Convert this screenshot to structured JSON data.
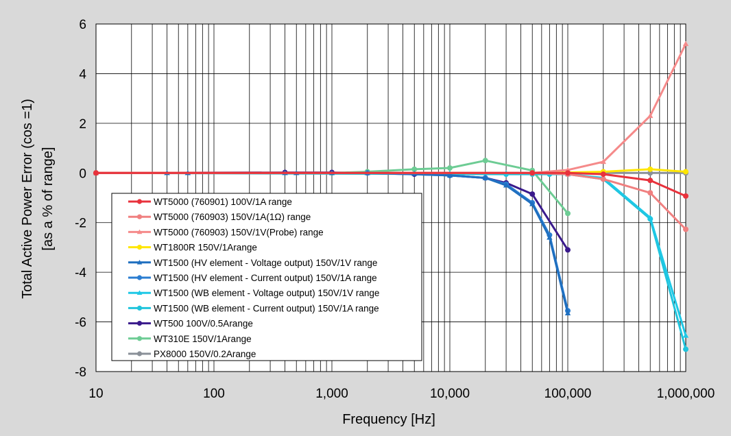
{
  "chart_data": {
    "type": "line",
    "title": "",
    "xlabel": "Frequency [Hz]",
    "ylabel_lines": [
      "Total Active Power Error (cos =1)",
      "[as a % of range]"
    ],
    "x_scale": "log",
    "xlim": [
      10,
      1000000
    ],
    "ylim": [
      -8,
      6
    ],
    "x_ticks": [
      10,
      100,
      1000,
      10000,
      100000,
      1000000
    ],
    "x_tick_labels": [
      "10",
      "100",
      "1,000",
      "10,000",
      "100,000",
      "1,000,000"
    ],
    "y_ticks": [
      -8,
      -6,
      -4,
      -2,
      0,
      2,
      4,
      6
    ],
    "y_tick_labels": [
      "-8",
      "-6",
      "-4",
      "-2",
      "0",
      "2",
      "4",
      "6"
    ],
    "grid": true,
    "legend_position": "bottom-left",
    "series": [
      {
        "name": "WT5000 (760901) 100V/1A range",
        "color": "#e8323c",
        "marker": "circle",
        "x": [
          10,
          50000,
          100000,
          200000,
          500000,
          1000000
        ],
        "y": [
          0,
          0,
          0,
          -0.05,
          -0.3,
          -0.93
        ]
      },
      {
        "name": "WT5000 (760903) 150V/1A(1Ω) range",
        "color": "#f08080",
        "marker": "circle",
        "x": [
          10,
          50000,
          100000,
          200000,
          500000,
          1000000
        ],
        "y": [
          0,
          0,
          -0.05,
          -0.25,
          -0.8,
          -2.27
        ]
      },
      {
        "name": "WT5000 (760903) 150V/1V(Probe) range",
        "color": "#f58a8a",
        "marker": "triangle",
        "x": [
          10,
          50000,
          100000,
          200000,
          500000,
          1000000
        ],
        "y": [
          0,
          0,
          0.12,
          0.45,
          2.3,
          5.2
        ]
      },
      {
        "name": "WT1800R 150V/1Arange",
        "color": "#ffe600",
        "marker": "circle",
        "x": [
          10,
          50000,
          100000,
          200000,
          500000,
          1000000
        ],
        "y": [
          0,
          0,
          0.02,
          0.05,
          0.15,
          0.05
        ]
      },
      {
        "name": "WT1500 (HV element - Voltage output) 150V/1V range",
        "color": "#1f6fbf",
        "marker": "triangle",
        "x": [
          10,
          40,
          60,
          400,
          500,
          1000,
          2000,
          5000,
          10000,
          20000,
          30000,
          50000,
          70000,
          100000
        ],
        "y": [
          0,
          0,
          0,
          0,
          0,
          0,
          0,
          -0.03,
          -0.1,
          -0.2,
          -0.5,
          -1.25,
          -2.6,
          -5.65
        ]
      },
      {
        "name": "WT1500 (HV element - Current output) 150V/1A range",
        "color": "#2a7dd1",
        "marker": "circle",
        "x": [
          10,
          2000,
          10000,
          20000,
          30000,
          50000,
          70000,
          100000
        ],
        "y": [
          0,
          0,
          -0.1,
          -0.2,
          -0.45,
          -1.2,
          -2.5,
          -5.55
        ]
      },
      {
        "name": "WT1500 (WB element - Voltage output) 150V/1V range",
        "color": "#1ec8e6",
        "marker": "triangle",
        "x": [
          10,
          40,
          60,
          400,
          500,
          1000,
          2000,
          5000,
          10000,
          30000,
          50000,
          100000,
          200000,
          500000,
          1000000
        ],
        "y": [
          0,
          0,
          0,
          0,
          0,
          0,
          0,
          0,
          0,
          0,
          0,
          -0.05,
          -0.2,
          -1.8,
          -6.55
        ]
      },
      {
        "name": "WT1500 (WB element - Current output) 150V/1A range",
        "color": "#20c4dc",
        "marker": "circle",
        "x": [
          10,
          30000,
          50000,
          70000,
          100000,
          200000,
          500000,
          1000000
        ],
        "y": [
          0,
          -0.05,
          -0.05,
          -0.05,
          -0.05,
          -0.25,
          -1.85,
          -7.1
        ]
      },
      {
        "name": "WT500 100V/0.5Arange",
        "color": "#3a1a8c",
        "marker": "circle",
        "x": [
          10,
          400,
          1000,
          5000,
          10000,
          20000,
          30000,
          50000,
          100000
        ],
        "y": [
          0,
          0.02,
          0.02,
          -0.05,
          -0.1,
          -0.2,
          -0.4,
          -0.85,
          -3.1
        ]
      },
      {
        "name": "WT310E 150V/1Arange",
        "color": "#6dcc94",
        "marker": "circle",
        "x": [
          10,
          1000,
          2000,
          5000,
          10000,
          20000,
          50000,
          100000
        ],
        "y": [
          0,
          0,
          0.05,
          0.15,
          0.2,
          0.5,
          0.1,
          -1.63
        ]
      },
      {
        "name": "PX8000 150V/0.2Arange",
        "color": "#8a9098",
        "marker": "circle",
        "x": [
          10,
          100000,
          200000,
          500000,
          1000000
        ],
        "y": [
          0,
          0,
          0,
          0,
          0
        ]
      }
    ]
  }
}
